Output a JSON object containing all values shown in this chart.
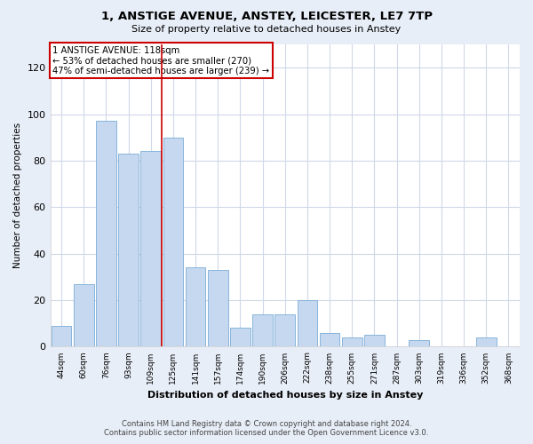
{
  "title": "1, ANSTIGE AVENUE, ANSTEY, LEICESTER, LE7 7TP",
  "subtitle": "Size of property relative to detached houses in Anstey",
  "xlabel": "Distribution of detached houses by size in Anstey",
  "ylabel": "Number of detached properties",
  "bar_color": "#c5d8f0",
  "bar_edge_color": "#7aacd6",
  "categories": [
    "44sqm",
    "60sqm",
    "76sqm",
    "93sqm",
    "109sqm",
    "125sqm",
    "141sqm",
    "157sqm",
    "174sqm",
    "190sqm",
    "206sqm",
    "222sqm",
    "238sqm",
    "255sqm",
    "271sqm",
    "287sqm",
    "303sqm",
    "319sqm",
    "336sqm",
    "352sqm",
    "368sqm"
  ],
  "values": [
    9,
    27,
    97,
    83,
    84,
    90,
    34,
    33,
    8,
    14,
    14,
    20,
    6,
    4,
    5,
    0,
    3,
    0,
    0,
    4,
    0
  ],
  "ylim": [
    0,
    130
  ],
  "yticks": [
    0,
    20,
    40,
    60,
    80,
    100,
    120
  ],
  "property_line_x": 4.5,
  "annotation_line1": "1 ANSTIGE AVENUE: 118sqm",
  "annotation_line2": "← 53% of detached houses are smaller (270)",
  "annotation_line3": "47% of semi-detached houses are larger (239) →",
  "annotation_box_color": "#ffffff",
  "annotation_box_edge_color": "#cc0000",
  "footer_line1": "Contains HM Land Registry data © Crown copyright and database right 2024.",
  "footer_line2": "Contains public sector information licensed under the Open Government Licence v3.0.",
  "fig_background_color": "#e8eef7",
  "plot_background_color": "#ffffff",
  "grid_color": "#d0d8e8"
}
